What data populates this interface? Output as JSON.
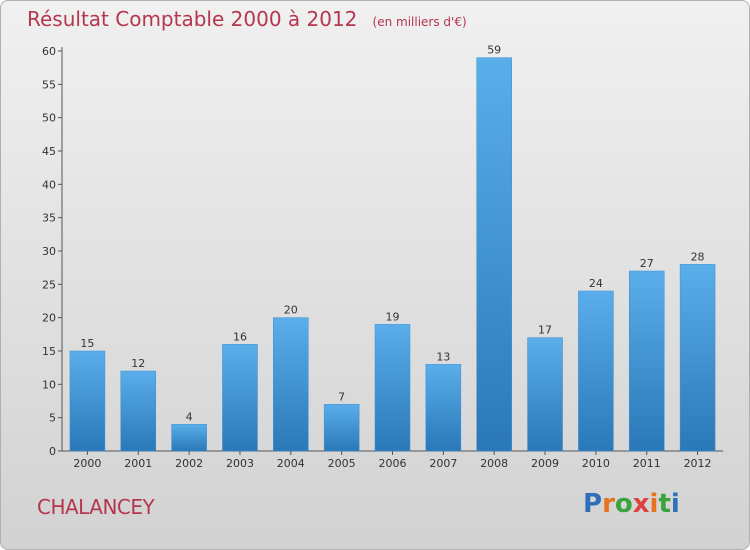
{
  "header": {
    "title": "Résultat Comptable 2000 à 2012",
    "subtitle": "(en milliers d'€)"
  },
  "commune": "CHALANCEY",
  "logo": {
    "text": "Proxiti",
    "letter_colors": [
      "#2f6fb7",
      "#e8731e",
      "#3aa33c",
      "#e04040",
      "#e8731e",
      "#3aa33c",
      "#2f6fb7"
    ]
  },
  "chart_data": {
    "type": "bar",
    "title": "Résultat Comptable 2000 à 2012",
    "subtitle": "(en milliers d'€)",
    "categories": [
      "2000",
      "2001",
      "2002",
      "2003",
      "2004",
      "2005",
      "2006",
      "2007",
      "2008",
      "2009",
      "2010",
      "2011",
      "2012"
    ],
    "values": [
      15,
      12,
      4,
      16,
      20,
      7,
      19,
      13,
      59,
      17,
      24,
      27,
      28
    ],
    "ylim": [
      0,
      60
    ],
    "yticks": [
      0,
      5,
      10,
      15,
      20,
      25,
      30,
      35,
      40,
      45,
      50,
      55,
      60
    ],
    "grid": false,
    "bar_color_top": "#5aaeea",
    "bar_color_bottom": "#2a78b8"
  }
}
